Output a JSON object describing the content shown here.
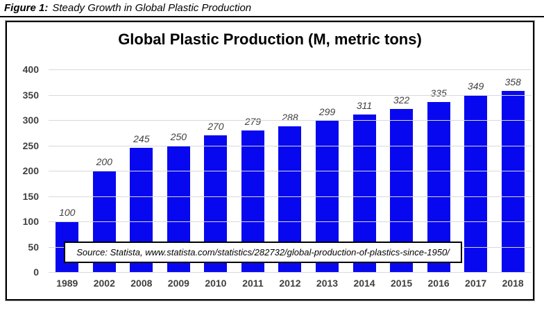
{
  "figure_caption": {
    "prefix": "Figure 1:",
    "text": "Steady Growth in Global Plastic Production"
  },
  "chart_data": {
    "type": "bar",
    "title": "Global Plastic Production (M, metric tons)",
    "categories": [
      "1989",
      "2002",
      "2008",
      "2009",
      "2010",
      "2011",
      "2012",
      "2013",
      "2014",
      "2015",
      "2016",
      "2017",
      "2018"
    ],
    "values": [
      100,
      200,
      245,
      250,
      270,
      279,
      288,
      299,
      311,
      322,
      335,
      349,
      358
    ],
    "xlabel": "",
    "ylabel": "",
    "ylim": [
      0,
      400
    ],
    "ytick_step": 50,
    "grid": true,
    "legend": "none",
    "data_labels": "above-bars-italic",
    "source_note": "Source: Statista, www.statista.com/statistics/282732/global-production-of-plastics-since-1950/"
  },
  "colors": {
    "bar": "#0808f0",
    "axis_text": "#404040",
    "gridline": "#d9d9d9",
    "border": "#000000",
    "background": "#ffffff"
  }
}
